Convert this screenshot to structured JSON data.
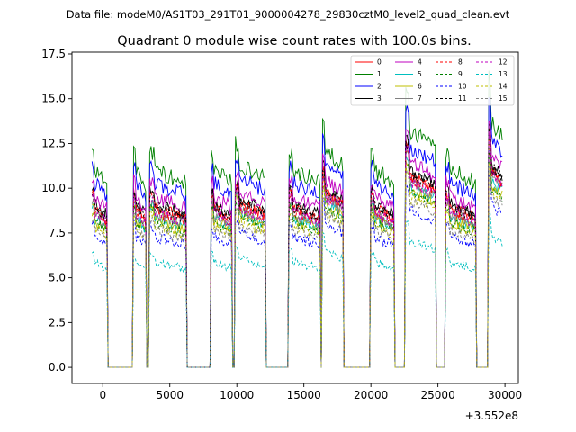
{
  "chart_data": {
    "type": "line",
    "suptitle": "Data file: modeM0/AS1T03_291T01_9000004278_29830cztM0_level2_quad_clean.evt",
    "title": "Quadrant 0 module wise count rates with 100.0s bins.",
    "xlabel": "",
    "ylabel": "",
    "x_offset_label": "+3.552e8",
    "xlim": [
      -2300,
      31000
    ],
    "ylim": [
      -0.9,
      17.6
    ],
    "xticks": [
      0,
      5000,
      10000,
      15000,
      20000,
      25000,
      30000
    ],
    "xtick_labels": [
      "0",
      "5000",
      "10000",
      "15000",
      "20000",
      "25000",
      "30000"
    ],
    "yticks": [
      0.0,
      2.5,
      5.0,
      7.5,
      10.0,
      12.5,
      15.0,
      17.5
    ],
    "ytick_labels": [
      "0.0",
      "2.5",
      "5.0",
      "7.5",
      "10.0",
      "12.5",
      "15.0",
      "17.5"
    ],
    "bin_size_s": 100,
    "on_intervals": [
      [
        -800,
        300
      ],
      [
        2300,
        3200
      ],
      [
        3500,
        6200
      ],
      [
        8100,
        9600
      ],
      [
        9900,
        12100
      ],
      [
        13900,
        16200
      ],
      [
        16400,
        17900
      ],
      [
        20000,
        21700
      ],
      [
        22600,
        24800
      ],
      [
        25600,
        27800
      ],
      [
        28800,
        29800
      ]
    ],
    "interval_peak_factors": [
      1.0,
      1.0,
      1.0,
      1.0,
      1.03,
      1.0,
      1.1,
      1.0,
      1.2,
      1.0,
      1.25
    ],
    "series": [
      {
        "name": "0",
        "color": "#ff0000",
        "dash": "solid",
        "base": 8.3
      },
      {
        "name": "1",
        "color": "#008000",
        "dash": "solid",
        "base": 10.3
      },
      {
        "name": "2",
        "color": "#0000ff",
        "dash": "solid",
        "base": 9.6
      },
      {
        "name": "3",
        "color": "#000000",
        "dash": "solid",
        "base": 8.5
      },
      {
        "name": "4",
        "color": "#bf00bf",
        "dash": "solid",
        "base": 8.9
      },
      {
        "name": "5",
        "color": "#00bfbf",
        "dash": "solid",
        "base": 7.8
      },
      {
        "name": "6",
        "color": "#bfbf00",
        "dash": "solid",
        "base": 7.7
      },
      {
        "name": "7",
        "color": "#808080",
        "dash": "solid",
        "base": 8.0
      },
      {
        "name": "8",
        "color": "#ff0000",
        "dash": "dashed",
        "base": 8.2
      },
      {
        "name": "9",
        "color": "#008000",
        "dash": "dashed",
        "base": 7.6
      },
      {
        "name": "10",
        "color": "#0000ff",
        "dash": "dashed",
        "base": 6.8
      },
      {
        "name": "11",
        "color": "#000000",
        "dash": "dashed",
        "base": 8.4
      },
      {
        "name": "12",
        "color": "#bf00bf",
        "dash": "dashed",
        "base": 8.1
      },
      {
        "name": "13",
        "color": "#00bfbf",
        "dash": "dashed",
        "base": 5.5
      },
      {
        "name": "14",
        "color": "#bfbf00",
        "dash": "dashed",
        "base": 7.4
      },
      {
        "name": "15",
        "color": "#808080",
        "dash": "dashed",
        "base": 7.2
      }
    ],
    "legend_location": "upper right",
    "legend_columns": 4,
    "grid": false
  }
}
